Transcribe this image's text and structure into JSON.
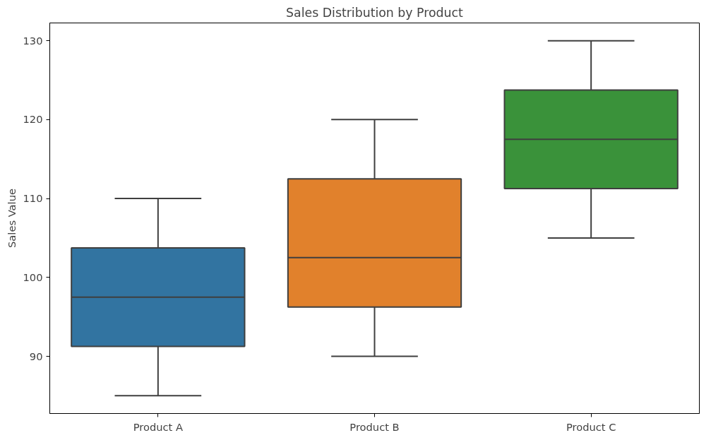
{
  "chart_data": {
    "type": "box",
    "title": "Sales Distribution by Product",
    "ylabel": "Sales Value",
    "categories": [
      "Product A",
      "Product B",
      "Product C"
    ],
    "colors": [
      "#3274a1",
      "#e1812c",
      "#3a923a"
    ],
    "boxes": [
      {
        "low": 85,
        "q1": 91.25,
        "median": 97.5,
        "q3": 103.75,
        "high": 110
      },
      {
        "low": 90,
        "q1": 96.25,
        "median": 102.5,
        "q3": 112.5,
        "high": 120
      },
      {
        "low": 105,
        "q1": 111.25,
        "median": 117.5,
        "q3": 123.75,
        "high": 130
      }
    ],
    "ylim": [
      82.75,
      132.25
    ],
    "yticks": [
      90,
      100,
      110,
      120,
      130
    ],
    "grid": false
  }
}
